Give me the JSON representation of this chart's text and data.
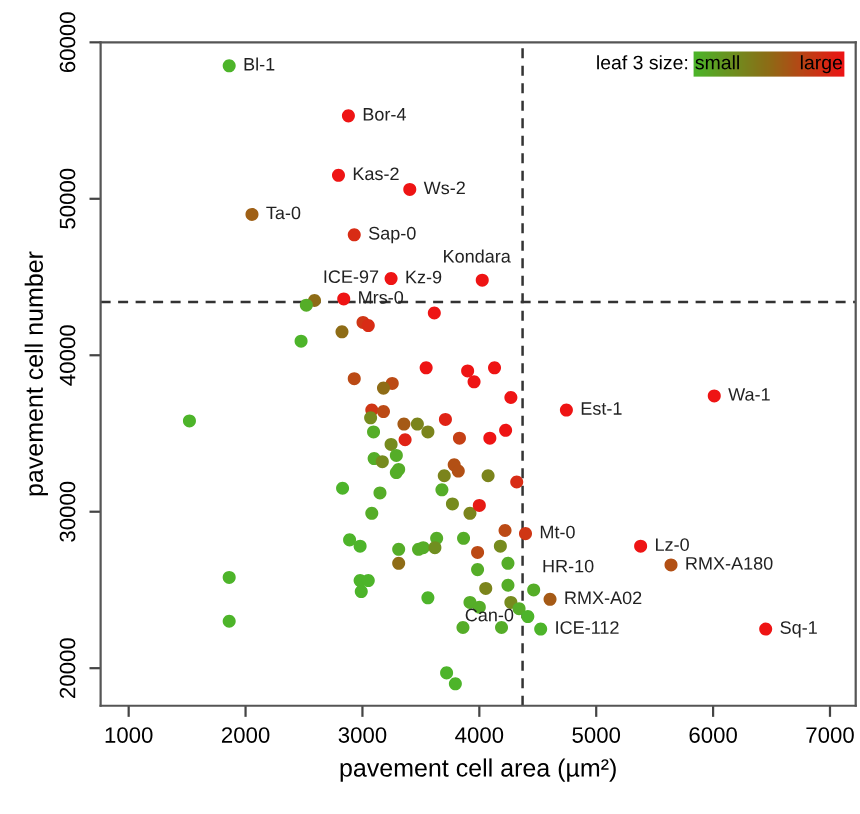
{
  "chart_data": {
    "type": "scatter",
    "xlabel": "pavement cell area (µm²)",
    "ylabel": "pavement cell number",
    "xlim": [
      760,
      7220
    ],
    "ylim": [
      17600,
      60000
    ],
    "xticks": [
      1000,
      2000,
      3000,
      4000,
      5000,
      6000,
      7000
    ],
    "yticks": [
      20000,
      30000,
      40000,
      50000,
      60000
    ],
    "grid": false,
    "marker": "circle",
    "colors": [
      "#4cb52a",
      "#8e6c16",
      "#ee1414"
    ],
    "ref_lines": [
      {
        "axis": "x",
        "value": 4370,
        "line_style": "dashed",
        "color": "#333333"
      },
      {
        "axis": "y",
        "value": 43400,
        "line_style": "dashed",
        "color": "#333333"
      }
    ],
    "series": [
      {
        "x": [
          1860,
          2880,
          2795,
          3405,
          2055,
          2930,
          3245,
          4025,
          2590,
          2520,
          2840,
          3005,
          3050,
          2825,
          2475,
          3545,
          2930,
          3255,
          3180,
          3615,
          3900,
          4130,
          3955,
          4270,
          6010,
          4745,
          1520,
          3080,
          3180,
          3070,
          3355,
          3470,
          3560,
          3095,
          3365,
          3245,
          3100,
          3170,
          3290,
          3310,
          3290,
          2830,
          3150,
          3080,
          2890,
          2980,
          3310,
          3480,
          3520,
          3310,
          2980,
          3050,
          2990,
          3560,
          1860,
          1860,
          3710,
          3830,
          4090,
          4225,
          3785,
          3820,
          3700,
          4075,
          3680,
          4320,
          3770,
          3920,
          4000,
          4220,
          4395,
          3635,
          3620,
          3865,
          3985,
          4180,
          4245,
          3985,
          4055,
          4245,
          3920,
          4000,
          4270,
          4340,
          4465,
          4605,
          4415,
          4525,
          3860,
          4190,
          3720,
          3795,
          5380,
          5640,
          6450
        ],
        "values": [
          58500,
          55300,
          51500,
          50600,
          49000,
          47700,
          44900,
          44800,
          43500,
          43200,
          43600,
          42100,
          41900,
          41500,
          40900,
          39200,
          38500,
          38200,
          37900,
          42700,
          39000,
          39200,
          38300,
          37300,
          37400,
          36500,
          35800,
          36500,
          36400,
          36000,
          35600,
          35600,
          35100,
          35100,
          34600,
          34300,
          33400,
          33200,
          33600,
          32700,
          32500,
          31500,
          31200,
          29900,
          28200,
          27800,
          27600,
          27600,
          27700,
          26700,
          25600,
          25600,
          24900,
          24500,
          25800,
          23000,
          35900,
          34700,
          34700,
          35200,
          33000,
          32600,
          32300,
          32300,
          31400,
          31900,
          30500,
          29900,
          30400,
          28800,
          28600,
          28300,
          27700,
          28300,
          27400,
          27800,
          26700,
          26300,
          25100,
          25300,
          24200,
          23900,
          24200,
          23800,
          25000,
          24400,
          23300,
          22500,
          22600,
          22600,
          19700,
          19000,
          27800,
          26600,
          22500
        ],
        "colors": [
          "#4db42a",
          "#ee1414",
          "#ee1414",
          "#ee1414",
          "#9f6016",
          "#d82c15",
          "#ee1414",
          "#ee1414",
          "#8e6c16",
          "#55ad28",
          "#ee1414",
          "#cf3615",
          "#d82c15",
          "#8e6c16",
          "#4db42a",
          "#ee1414",
          "#bb4a15",
          "#bb4a15",
          "#8e6c16",
          "#ee1414",
          "#ee1414",
          "#ee1414",
          "#ee1414",
          "#ee1414",
          "#ee1414",
          "#ee1414",
          "#4db42a",
          "#cf3615",
          "#bb4a15",
          "#768b1e",
          "#a55a16",
          "#7b841c",
          "#7b841c",
          "#55ad28",
          "#e02215",
          "#768b1e",
          "#55ad28",
          "#768b1e",
          "#55ad28",
          "#55ad28",
          "#55ad28",
          "#4db42a",
          "#55ad28",
          "#55ad28",
          "#4db42a",
          "#4db42a",
          "#55ad28",
          "#55ad28",
          "#55ad28",
          "#8e6c16",
          "#4db42a",
          "#4db42a",
          "#4db42a",
          "#4db42a",
          "#4db42a",
          "#4db42a",
          "#e02215",
          "#c54015",
          "#ee1414",
          "#ee1414",
          "#b25015",
          "#b25015",
          "#7b841c",
          "#7b841c",
          "#55ad28",
          "#d82c15",
          "#768b1e",
          "#7b841c",
          "#e61b14",
          "#bb4a15",
          "#cf3615",
          "#55ad28",
          "#708f20",
          "#55ad28",
          "#bb4a15",
          "#768b1e",
          "#55ad28",
          "#55ad28",
          "#7b841c",
          "#55ad28",
          "#55ad28",
          "#55ad28",
          "#768b1e",
          "#55ad28",
          "#55ad28",
          "#a55a16",
          "#4db42a",
          "#4db42a",
          "#55ad28",
          "#55ad28",
          "#4db42a",
          "#4db42a",
          "#ee1414",
          "#b25015",
          "#ee1414"
        ]
      }
    ],
    "annotations": [
      "leaf 3 size:",
      "small",
      "large",
      {
        "text": "Bl-1",
        "x": 1860,
        "y": 58500
      },
      {
        "text": "Bor-4",
        "x": 2880,
        "y": 55300
      },
      {
        "text": "Kas-2",
        "x": 2795,
        "y": 51500
      },
      {
        "text": "Ws-2",
        "x": 3405,
        "y": 50600
      },
      {
        "text": "Ta-0",
        "x": 2055,
        "y": 49000
      },
      {
        "text": "Sap-0",
        "x": 2930,
        "y": 47700
      },
      {
        "text": "Kz-9",
        "x": 3245,
        "y": 44900
      },
      {
        "text": "Kondara",
        "x": 4025,
        "y": 44800
      },
      {
        "text": "ICE-97",
        "x": 2590,
        "y": 43500
      },
      {
        "text": "Mrs-0",
        "x": 2840,
        "y": 43600
      },
      {
        "text": "Wa-1",
        "x": 6010,
        "y": 37400
      },
      {
        "text": "Est-1",
        "x": 4745,
        "y": 36500
      },
      {
        "text": "Mt-0",
        "x": 4395,
        "y": 28600
      },
      {
        "text": "HR-10",
        "x": 4465,
        "y": 25000
      },
      {
        "text": "RMX-A02",
        "x": 4605,
        "y": 24400
      },
      {
        "text": "Can-0",
        "x": 4415,
        "y": 23300
      },
      {
        "text": "ICE-112",
        "x": 4525,
        "y": 22500
      },
      {
        "text": "Lz-0",
        "x": 5380,
        "y": 27800
      },
      {
        "text": "RMX-A180",
        "x": 5640,
        "y": 26600
      },
      {
        "text": "Sq-1",
        "x": 6450,
        "y": 22500
      }
    ]
  }
}
